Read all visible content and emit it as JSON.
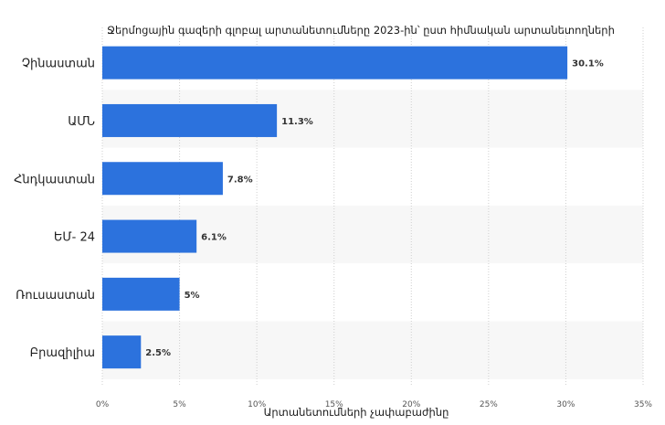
{
  "chart_data": {
    "type": "bar",
    "orientation": "horizontal",
    "title": "Ջերմոցային գազերի գլոբալ արտանետումները 2023-ին՝ ըստ հիմնական արտանետողների",
    "xlabel": "Արտանետումների չափաբաժինը",
    "ylabel": "",
    "categories": [
      "Չինաստան",
      "ԱՄՆ",
      "Հնդկաստան",
      "ԵՄ- 24",
      "Ռուսաստան",
      "Բրազիլիա"
    ],
    "values": [
      30.1,
      11.3,
      7.8,
      6.1,
      5,
      2.5
    ],
    "value_labels": [
      "30.1%",
      "11.3%",
      "7.8%",
      "6.1%",
      "5%",
      "2.5%"
    ],
    "xlim": [
      0,
      35
    ],
    "x_ticks": [
      0,
      5,
      10,
      15,
      20,
      25,
      30,
      35
    ],
    "x_tick_labels": [
      "0%",
      "5%",
      "10%",
      "15%",
      "20%",
      "25%",
      "30%",
      "35%"
    ],
    "grid": true,
    "legend": "none",
    "bar_color": "#2c72dd",
    "band_color": "#f7f7f7"
  }
}
